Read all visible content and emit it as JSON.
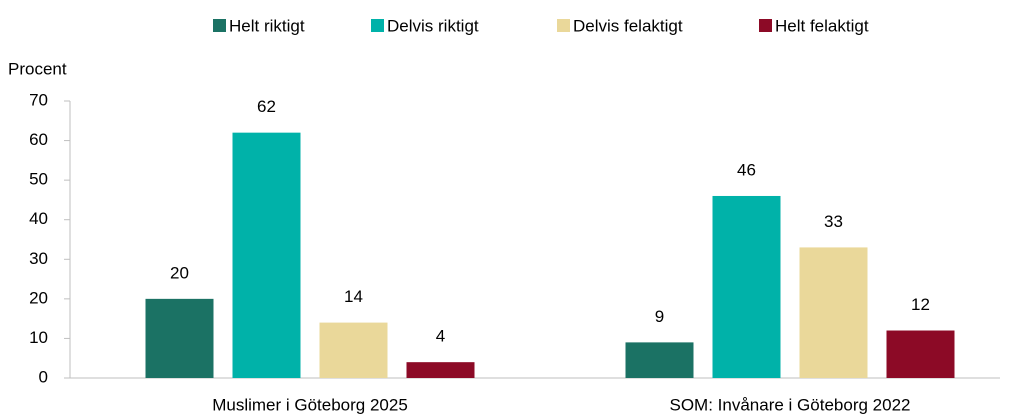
{
  "chart_data": {
    "type": "bar",
    "y_label": "Procent",
    "categories": [
      "Muslimer i Göteborg 2025",
      "SOM: Invånare i Göteborg 2022"
    ],
    "series": [
      {
        "name": "Helt riktigt",
        "color": "#1b7264",
        "values": [
          20,
          9
        ]
      },
      {
        "name": "Delvis riktigt",
        "color": "#00b2a9",
        "values": [
          62,
          46
        ]
      },
      {
        "name": "Delvis felaktigt",
        "color": "#ead89a",
        "values": [
          14,
          33
        ]
      },
      {
        "name": "Helt felaktigt",
        "color": "#8c0a26",
        "values": [
          4,
          12
        ]
      }
    ],
    "ylim": [
      0,
      70
    ],
    "yticks": [
      0,
      10,
      20,
      30,
      40,
      50,
      60,
      70
    ],
    "legend": "top",
    "data_labels": true
  }
}
